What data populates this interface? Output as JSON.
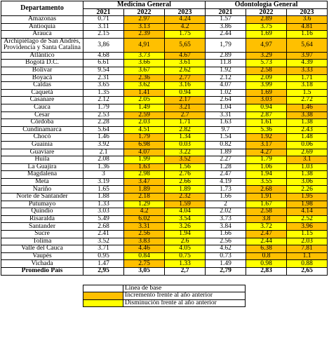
{
  "header": {
    "department": "Departamento",
    "groups": [
      "Medicina General",
      "Odontología General"
    ],
    "years": [
      "2021",
      "2022",
      "2023",
      "2021",
      "2022",
      "2023"
    ]
  },
  "rows": [
    {
      "department": "Amazonas",
      "values": [
        "0.71",
        "2.97",
        "4.24",
        "1.57",
        "2.89",
        "3.6"
      ]
    },
    {
      "department": "Antioquia",
      "values": [
        "3.11",
        "3.13",
        "4.2",
        "3.86",
        "3.75",
        "4.81"
      ]
    },
    {
      "department": "Arauca",
      "values": [
        "2.15",
        "2.39",
        "1.75",
        "2.44",
        "1.69",
        "1.16"
      ]
    },
    {
      "department": "Archipiélago de San Andrés, Providencia y Santa Catalina",
      "values": [
        "3,86",
        "4,91",
        "5,65",
        "1,79",
        "4,97",
        "5,64"
      ]
    },
    {
      "department": "Atlántico",
      "values": [
        "4.68",
        "3.73",
        "4.67",
        "2.89",
        "3.29",
        "3.97"
      ]
    },
    {
      "department": "Bogotá D.C.",
      "values": [
        "6.61",
        "3.66",
        "3.61",
        "11.8",
        "5.73",
        "4.39"
      ]
    },
    {
      "department": "Bolívar",
      "values": [
        "9.54",
        "3.67",
        "2.62",
        "1.92",
        "2.58",
        "3.33"
      ]
    },
    {
      "department": "Boyacá",
      "values": [
        "2.31",
        "2.36",
        "2.77",
        "2.12",
        "2.09",
        "1.71"
      ]
    },
    {
      "department": "Caldas",
      "values": [
        "3.65",
        "3.62",
        "3.16",
        "4.07",
        "3.99",
        "3.18"
      ]
    },
    {
      "department": "Caquetá",
      "values": [
        "1.35",
        "1.41",
        "0.94",
        "1.02",
        "1.69",
        "1.5"
      ]
    },
    {
      "department": "Casanare",
      "values": [
        "2.12",
        "2.05",
        "2.17",
        "2.64",
        "3.03",
        "2.72"
      ]
    },
    {
      "department": "Cauca",
      "values": [
        "1.79",
        "1.49",
        "3.21",
        "1.04",
        "0.94",
        "1.46"
      ]
    },
    {
      "department": "Cesar",
      "values": [
        "2.53",
        "2.59",
        "2.7",
        "3.31",
        "2.87",
        "3.38"
      ]
    },
    {
      "department": "Córdoba",
      "values": [
        "2.28",
        "2.03",
        "1.71",
        "1.63",
        "1.61",
        "1.38"
      ]
    },
    {
      "department": "Cundinamarca",
      "values": [
        "5.64",
        "4.51",
        "2.82",
        "9.7",
        "5.36",
        "2.43"
      ]
    },
    {
      "department": "Chocó",
      "values": [
        "1.46",
        "1.79",
        "1.34",
        "1.54",
        "1.92",
        "1.48"
      ]
    },
    {
      "department": "Guainía",
      "values": [
        "3.92",
        "6.98",
        "0.03",
        "0.82",
        "3.17",
        "0.06"
      ]
    },
    {
      "department": "Guaviare",
      "values": [
        "2.1",
        "4.07",
        "3.22",
        "1.89",
        "4.27",
        "2.69"
      ]
    },
    {
      "department": "Huila",
      "values": [
        "2.08",
        "1.99",
        "3.52",
        "2.27",
        "1.79",
        "3.1"
      ]
    },
    {
      "department": "La Guajira",
      "values": [
        "1.36",
        "1.63",
        "1.56",
        "1.28",
        "1.06",
        "1.03"
      ]
    },
    {
      "department": "Magdalena",
      "values": [
        "3",
        "2.98",
        "2.76",
        "2.47",
        "1.94",
        "1.38"
      ]
    },
    {
      "department": "Meta",
      "values": [
        "3.19",
        "3.47",
        "2.66",
        "4.19",
        "3.55",
        "3.06"
      ]
    },
    {
      "department": "Nariño",
      "values": [
        "1.65",
        "1.89",
        "1.89",
        "1.73",
        "2.68",
        "2.26"
      ]
    },
    {
      "department": "Norte de Santander",
      "values": [
        "1.88",
        "2.18",
        "2.32",
        "1.66",
        "1.91",
        "1.95"
      ]
    },
    {
      "department": "Putumayo",
      "values": [
        "1.33",
        "1.29",
        "1.59",
        "2",
        "1.67",
        "1.98"
      ]
    },
    {
      "department": "Quindío",
      "values": [
        "3.03",
        "4.2",
        "4.04",
        "2.02",
        "2.58",
        "4.14"
      ]
    },
    {
      "department": "Risaralda",
      "values": [
        "5.49",
        "6.02",
        "3.54",
        "3.73",
        "3.8",
        "2.52"
      ]
    },
    {
      "department": "Santander",
      "values": [
        "2.68",
        "3.31",
        "3.26",
        "3.84",
        "3.72",
        "3.96"
      ]
    },
    {
      "department": "Sucre",
      "values": [
        "2.41",
        "2.56",
        "1.94",
        "1.66",
        "2.47",
        "1.15"
      ]
    },
    {
      "department": "Tolima",
      "values": [
        "3.52",
        "3.83",
        "2.6",
        "2.56",
        "2.44",
        "2.03"
      ]
    },
    {
      "department": "Valle del Cauca",
      "values": [
        "3.71",
        "4.46",
        "4.05",
        "4.62",
        "6.38",
        "7.81"
      ]
    },
    {
      "department": "Vaupés",
      "values": [
        "0.95",
        "0.84",
        "0.75",
        "0.73",
        "0.8",
        "1.1"
      ]
    },
    {
      "department": "Vichada",
      "values": [
        "1.47",
        "2.75",
        "1.33",
        "1.49",
        "0.98",
        "0.88"
      ]
    }
  ],
  "footer": {
    "label": "Promedio País",
    "values": [
      "2,95",
      "3,05",
      "2,7",
      "2,79",
      "2,83",
      "2,65"
    ]
  },
  "legend": [
    {
      "label": "Línea de base",
      "color": "#ffffff"
    },
    {
      "label": "Incremento frente al año anterior",
      "color": "#ffc000"
    },
    {
      "label": "Disminución frente al año anterior",
      "color": "#ffff00"
    }
  ]
}
